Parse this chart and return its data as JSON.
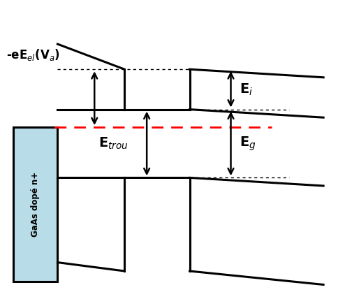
{
  "bg_color": "#ffffff",
  "box_color": "#b8dde8",
  "label_gaas": "GaAs dopé n+",
  "label_Eel": "-eE$_{el}$(V$_a$)",
  "label_Ei": "E$_i$",
  "label_Etrou": "E$_{trou}$",
  "label_Eg": "E$_g$",
  "lw": 2.2,
  "arrow_lw": 1.8
}
